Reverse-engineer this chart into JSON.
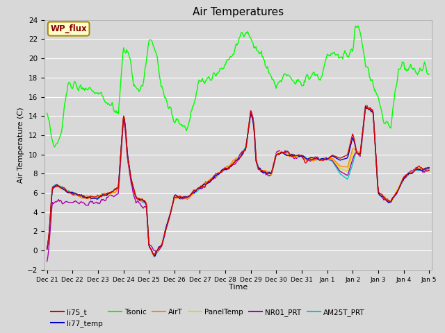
{
  "title": "Air Temperatures",
  "xlabel": "Time",
  "ylabel": "Air Temperature (C)",
  "ylim": [
    -2,
    24
  ],
  "yticks": [
    -2,
    0,
    2,
    4,
    6,
    8,
    10,
    12,
    14,
    16,
    18,
    20,
    22,
    24
  ],
  "bg_color": "#d8d8d8",
  "plot_bg_color": "#d8d8d8",
  "grid_color": "white",
  "series_colors": {
    "li75_t": "#dd0000",
    "li77_temp": "#0000cc",
    "Tsonic": "#00ff00",
    "AirT": "#ff8800",
    "PanelTemp": "#dddd00",
    "NR01_PRT": "#aa00aa",
    "AM25T_PRT": "#00cccc"
  },
  "x_tick_labels": [
    "Dec 21",
    "Dec 22",
    "Dec 23",
    "Dec 24",
    "Dec 25",
    "Dec 26",
    "Dec 27",
    "Dec 28",
    "Dec 29",
    "Dec 30",
    "Dec 31",
    "Jan 1",
    "Jan 2",
    "Jan 3",
    "Jan 4",
    "Jan 5"
  ],
  "x_tick_positions": [
    0,
    1,
    2,
    3,
    4,
    5,
    6,
    7,
    8,
    9,
    10,
    11,
    12,
    13,
    14,
    15
  ],
  "annotation_text": "WP_flux",
  "annotation_bg": "#ffffcc",
  "annotation_border": "#aa8800",
  "annotation_text_color": "#880000",
  "legend_entries": [
    "li75_t",
    "li77_temp",
    "Tsonic",
    "AirT",
    "PanelTemp",
    "NR01_PRT",
    "AM25T_PRT"
  ]
}
